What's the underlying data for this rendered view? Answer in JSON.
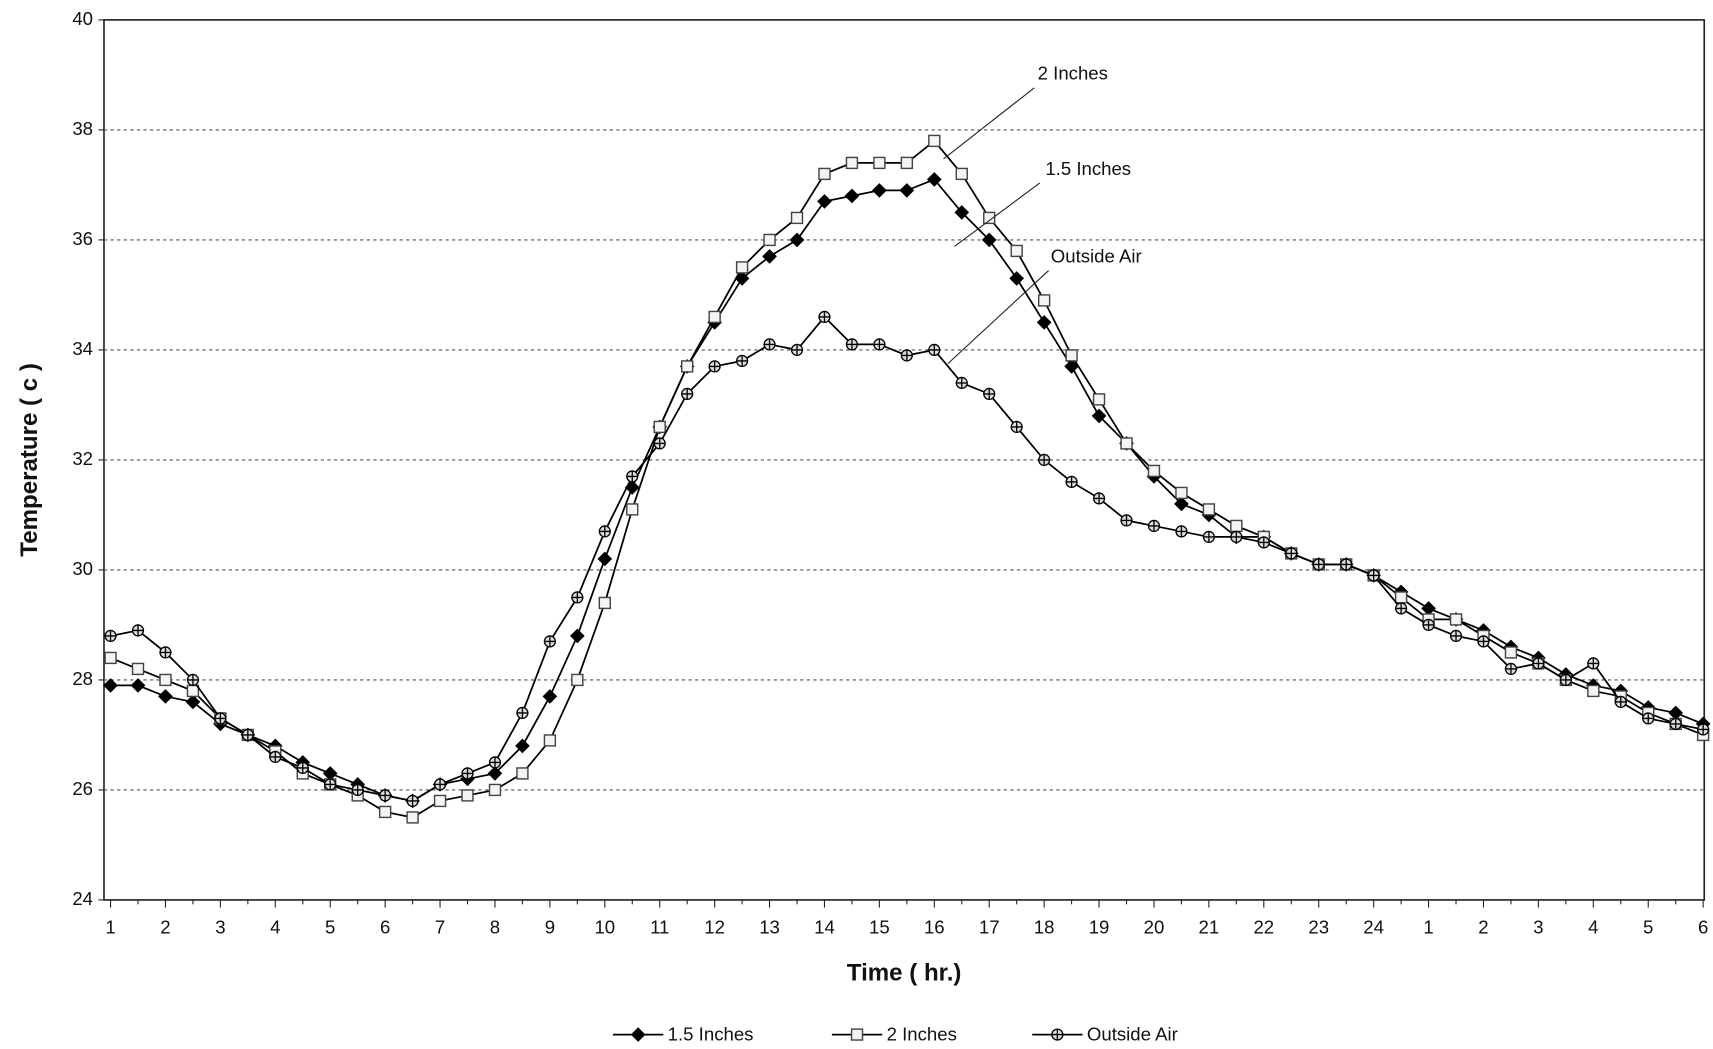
{
  "chart_data": {
    "type": "line",
    "x_label": "Time ( hr.)",
    "y_label": "Temperature ( c )",
    "categories": [
      "1",
      null,
      "2",
      null,
      "3",
      null,
      "4",
      null,
      "5",
      null,
      "6",
      null,
      "7",
      null,
      "8",
      null,
      "9",
      null,
      "10",
      null,
      "11",
      null,
      "12",
      null,
      "13",
      null,
      "14",
      null,
      "15",
      null,
      "16",
      null,
      "17",
      null,
      "18",
      null,
      "19",
      null,
      "20",
      null,
      "21",
      null,
      "22",
      null,
      "23",
      null,
      "24",
      null,
      "1",
      null,
      "2",
      null,
      "3",
      null,
      "4",
      null,
      "5",
      null,
      "6"
    ],
    "ylim": [
      24,
      40
    ],
    "yticks": [
      24,
      26,
      28,
      30,
      32,
      34,
      36,
      38,
      40
    ],
    "grid": true,
    "legend": "bottom",
    "annotations": [
      "2 Inches",
      "1.5 Inches",
      "Outside Air"
    ],
    "series": [
      {
        "name": "1.5 Inches",
        "color": "#000000",
        "marker": "diamond",
        "values": [
          27.9,
          27.9,
          27.7,
          27.6,
          27.2,
          27.0,
          26.8,
          26.5,
          26.3,
          26.1,
          25.9,
          25.8,
          26.1,
          26.2,
          26.3,
          26.8,
          27.7,
          28.8,
          30.2,
          31.5,
          32.6,
          33.7,
          34.5,
          35.3,
          35.7,
          36.0,
          36.7,
          36.8,
          36.9,
          36.9,
          37.1,
          36.5,
          36.0,
          35.3,
          34.5,
          33.7,
          32.8,
          32.3,
          31.7,
          31.2,
          31.0,
          30.6,
          30.6,
          30.3,
          30.1,
          30.1,
          29.9,
          29.6,
          29.3,
          29.1,
          28.9,
          28.6,
          28.4,
          28.1,
          27.9,
          27.8,
          27.5,
          27.4,
          27.2
        ]
      },
      {
        "name": "2 Inches",
        "color": "#000000",
        "marker": "square",
        "values": [
          28.4,
          28.2,
          28.0,
          27.8,
          27.3,
          27.0,
          26.7,
          26.3,
          26.1,
          25.9,
          25.6,
          25.5,
          25.8,
          25.9,
          26.0,
          26.3,
          26.9,
          28.0,
          29.4,
          31.1,
          32.6,
          33.7,
          34.6,
          35.5,
          36.0,
          36.4,
          37.2,
          37.4,
          37.4,
          37.4,
          37.8,
          37.2,
          36.4,
          35.8,
          34.9,
          33.9,
          33.1,
          32.3,
          31.8,
          31.4,
          31.1,
          30.8,
          30.6,
          30.3,
          30.1,
          30.1,
          29.9,
          29.5,
          29.1,
          29.1,
          28.8,
          28.5,
          28.3,
          28.0,
          27.8,
          27.7,
          27.4,
          27.2,
          27.0
        ]
      },
      {
        "name": "Outside Air",
        "color": "#000000",
        "marker": "crosscircle",
        "values": [
          28.8,
          28.9,
          28.5,
          28.0,
          27.3,
          27.0,
          26.6,
          26.4,
          26.1,
          26.0,
          25.9,
          25.8,
          26.1,
          26.3,
          26.5,
          27.4,
          28.7,
          29.5,
          30.7,
          31.7,
          32.3,
          33.2,
          33.7,
          33.8,
          34.1,
          34.0,
          34.6,
          34.1,
          34.1,
          33.9,
          34.0,
          33.4,
          33.2,
          32.6,
          32.0,
          31.6,
          31.3,
          30.9,
          30.8,
          30.7,
          30.6,
          30.6,
          30.5,
          30.3,
          30.1,
          30.1,
          29.9,
          29.3,
          29.0,
          28.8,
          28.7,
          28.2,
          28.3,
          28.0,
          28.3,
          27.6,
          27.3,
          27.2,
          27.1
        ]
      }
    ]
  }
}
